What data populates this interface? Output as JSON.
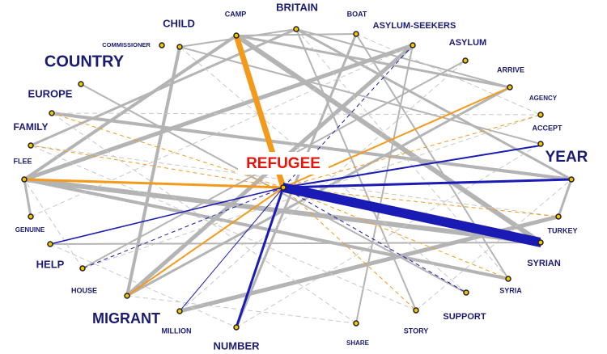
{
  "center": {
    "label": "REFUGEE"
  },
  "nodes": [
    {
      "label": "CAMP"
    },
    {
      "label": "BRITAIN"
    },
    {
      "label": "BOAT"
    },
    {
      "label": "ASYLUM-SEEKERS"
    },
    {
      "label": "ASYLUM"
    },
    {
      "label": "ARRIVE"
    },
    {
      "label": "AGENCY"
    },
    {
      "label": "ACCEPT"
    },
    {
      "label": "YEAR"
    },
    {
      "label": "TURKEY"
    },
    {
      "label": "SYRIAN"
    },
    {
      "label": "SYRIA"
    },
    {
      "label": "SUPPORT"
    },
    {
      "label": "STORY"
    },
    {
      "label": "SHARE"
    },
    {
      "label": "NUMBER"
    },
    {
      "label": "MILLION"
    },
    {
      "label": "MIGRANT"
    },
    {
      "label": "HOUSE"
    },
    {
      "label": "HELP"
    },
    {
      "label": "GENUINE"
    },
    {
      "label": "FLEE"
    },
    {
      "label": "FAMILY"
    },
    {
      "label": "EUROPE"
    },
    {
      "label": "COUNTRY"
    },
    {
      "label": "COMMISSIONER"
    },
    {
      "label": "CHILD"
    }
  ]
}
